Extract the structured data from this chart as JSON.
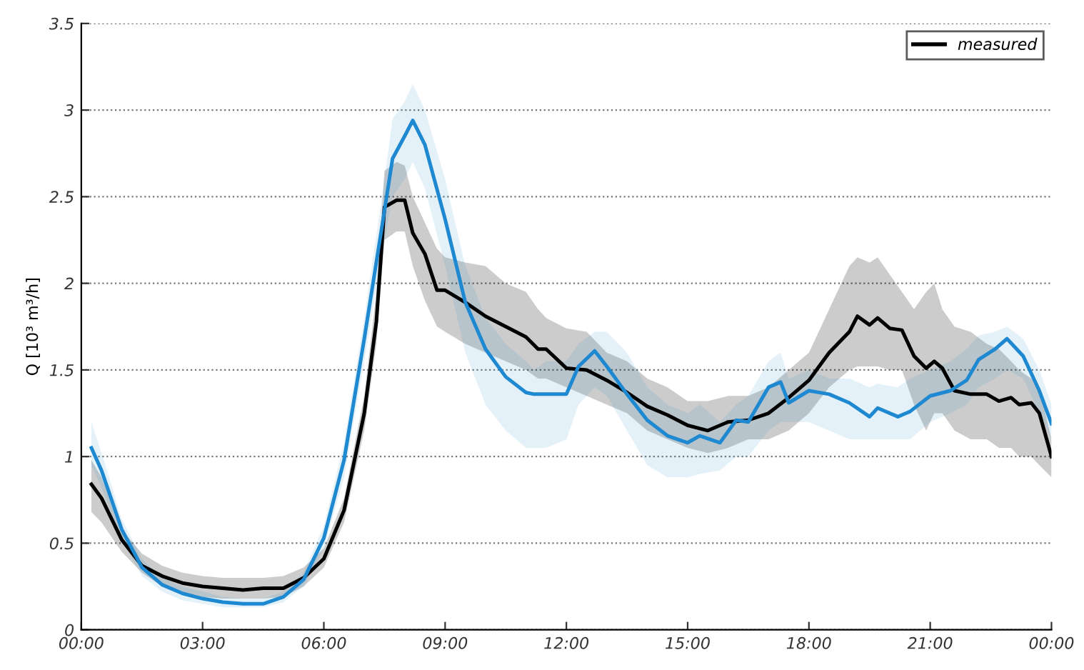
{
  "chart_data": {
    "type": "line",
    "ylabel": "Q [10³ m³/h]",
    "xlim": [
      0,
      24
    ],
    "ylim": [
      0,
      3.5
    ],
    "xticks": [
      {
        "value": 0,
        "label": "00:00"
      },
      {
        "value": 3,
        "label": "03:00"
      },
      {
        "value": 6,
        "label": "06:00"
      },
      {
        "value": 9,
        "label": "09:00"
      },
      {
        "value": 12,
        "label": "12:00"
      },
      {
        "value": 15,
        "label": "15:00"
      },
      {
        "value": 18,
        "label": "18:00"
      },
      {
        "value": 21,
        "label": "21:00"
      },
      {
        "value": 24,
        "label": "00:00"
      }
    ],
    "yticks": [
      0,
      0.5,
      1,
      1.5,
      2,
      2.5,
      3,
      3.5
    ],
    "grid": "y",
    "legend": "top right",
    "marker": "none",
    "line_style": "solid",
    "series": [
      {
        "name": "measured",
        "color": "#000000",
        "x": [
          0.25,
          0.5,
          1,
          1.5,
          2,
          2.5,
          3,
          3.5,
          4,
          4.5,
          5,
          5.5,
          6,
          6.5,
          7,
          7.3,
          7.5,
          7.8,
          8,
          8.2,
          8.5,
          8.8,
          9,
          9.5,
          10,
          10.5,
          11,
          11.3,
          11.5,
          12,
          12.5,
          13,
          13.5,
          14,
          14.5,
          15,
          15.5,
          16,
          16.5,
          17,
          17.5,
          18,
          18.5,
          19,
          19.2,
          19.5,
          19.7,
          20,
          20.3,
          20.6,
          20.9,
          21.1,
          21.3,
          21.6,
          22,
          22.4,
          22.7,
          23,
          23.2,
          23.5,
          23.7,
          24
        ],
        "values": [
          0.84,
          0.76,
          0.52,
          0.37,
          0.31,
          0.27,
          0.25,
          0.24,
          0.23,
          0.24,
          0.24,
          0.3,
          0.41,
          0.69,
          1.25,
          1.78,
          2.44,
          2.48,
          2.48,
          2.29,
          2.17,
          1.96,
          1.96,
          1.89,
          1.81,
          1.75,
          1.69,
          1.62,
          1.62,
          1.51,
          1.5,
          1.44,
          1.37,
          1.29,
          1.24,
          1.18,
          1.15,
          1.2,
          1.21,
          1.25,
          1.34,
          1.44,
          1.6,
          1.72,
          1.81,
          1.76,
          1.8,
          1.74,
          1.73,
          1.58,
          1.51,
          1.55,
          1.51,
          1.38,
          1.36,
          1.36,
          1.32,
          1.34,
          1.3,
          1.31,
          1.25,
          1.0
        ],
        "lower": [
          0.68,
          0.62,
          0.45,
          0.33,
          0.25,
          0.21,
          0.19,
          0.18,
          0.18,
          0.18,
          0.19,
          0.25,
          0.36,
          0.62,
          1.15,
          1.65,
          2.25,
          2.3,
          2.3,
          2.1,
          1.9,
          1.75,
          1.72,
          1.65,
          1.6,
          1.55,
          1.5,
          1.45,
          1.45,
          1.4,
          1.35,
          1.3,
          1.25,
          1.15,
          1.1,
          1.05,
          1.02,
          1.05,
          1.1,
          1.1,
          1.15,
          1.25,
          1.4,
          1.5,
          1.52,
          1.52,
          1.52,
          1.5,
          1.5,
          1.3,
          1.15,
          1.25,
          1.25,
          1.15,
          1.1,
          1.1,
          1.05,
          1.05,
          1.0,
          1.0,
          0.95,
          0.88
        ],
        "upper": [
          0.98,
          0.88,
          0.58,
          0.44,
          0.37,
          0.33,
          0.31,
          0.3,
          0.3,
          0.3,
          0.31,
          0.36,
          0.47,
          0.76,
          1.35,
          1.95,
          2.65,
          2.7,
          2.68,
          2.5,
          2.35,
          2.2,
          2.15,
          2.12,
          2.1,
          2.0,
          1.95,
          1.85,
          1.8,
          1.74,
          1.72,
          1.6,
          1.55,
          1.45,
          1.4,
          1.32,
          1.32,
          1.35,
          1.35,
          1.4,
          1.5,
          1.6,
          1.85,
          2.1,
          2.15,
          2.12,
          2.15,
          2.05,
          1.95,
          1.85,
          1.95,
          2.0,
          1.85,
          1.75,
          1.72,
          1.65,
          1.62,
          1.55,
          1.5,
          1.45,
          1.4,
          1.1
        ]
      },
      {
        "color": "#1e88d0",
        "x": [
          0.25,
          0.5,
          1,
          1.5,
          2,
          2.5,
          3,
          3.5,
          4,
          4.5,
          5,
          5.5,
          6,
          6.5,
          7,
          7.5,
          7.7,
          8,
          8.2,
          8.5,
          9,
          9.5,
          10,
          10.5,
          11,
          11.2,
          11.5,
          12,
          12.3,
          12.7,
          13,
          13.5,
          14,
          14.5,
          15,
          15.3,
          15.8,
          16.2,
          16.5,
          17,
          17.3,
          17.5,
          18,
          18.5,
          19,
          19.5,
          19.7,
          20.2,
          20.5,
          21,
          21.5,
          21.9,
          22.2,
          22.6,
          22.9,
          23.3,
          23.7,
          24
        ],
        "values": [
          1.05,
          0.92,
          0.58,
          0.36,
          0.26,
          0.21,
          0.18,
          0.16,
          0.15,
          0.15,
          0.19,
          0.29,
          0.53,
          0.98,
          1.68,
          2.42,
          2.72,
          2.85,
          2.94,
          2.8,
          2.37,
          1.89,
          1.62,
          1.46,
          1.37,
          1.36,
          1.36,
          1.36,
          1.52,
          1.61,
          1.52,
          1.36,
          1.21,
          1.12,
          1.08,
          1.12,
          1.08,
          1.21,
          1.2,
          1.4,
          1.43,
          1.31,
          1.38,
          1.36,
          1.31,
          1.23,
          1.28,
          1.23,
          1.26,
          1.35,
          1.38,
          1.44,
          1.56,
          1.62,
          1.68,
          1.58,
          1.38,
          1.19
        ],
        "lower": [
          0.95,
          0.82,
          0.52,
          0.31,
          0.22,
          0.17,
          0.15,
          0.13,
          0.13,
          0.13,
          0.16,
          0.25,
          0.47,
          0.88,
          1.55,
          2.25,
          2.5,
          2.6,
          2.7,
          2.55,
          2.1,
          1.6,
          1.3,
          1.15,
          1.05,
          1.05,
          1.05,
          1.1,
          1.3,
          1.4,
          1.35,
          1.15,
          0.95,
          0.88,
          0.88,
          0.9,
          0.92,
          1.0,
          1.0,
          1.15,
          1.2,
          1.2,
          1.2,
          1.15,
          1.1,
          1.1,
          1.1,
          1.1,
          1.1,
          1.2,
          1.25,
          1.3,
          1.4,
          1.45,
          1.5,
          1.45,
          1.25,
          1.1
        ],
        "upper": [
          1.2,
          1.02,
          0.64,
          0.41,
          0.3,
          0.25,
          0.22,
          0.19,
          0.18,
          0.18,
          0.22,
          0.33,
          0.6,
          1.08,
          1.8,
          2.6,
          2.95,
          3.05,
          3.15,
          3.0,
          2.6,
          2.1,
          1.8,
          1.65,
          1.55,
          1.5,
          1.55,
          1.55,
          1.65,
          1.72,
          1.72,
          1.6,
          1.4,
          1.3,
          1.25,
          1.3,
          1.2,
          1.3,
          1.35,
          1.55,
          1.6,
          1.45,
          1.5,
          1.45,
          1.45,
          1.4,
          1.42,
          1.4,
          1.45,
          1.5,
          1.55,
          1.62,
          1.7,
          1.72,
          1.75,
          1.68,
          1.5,
          1.3
        ]
      }
    ]
  }
}
